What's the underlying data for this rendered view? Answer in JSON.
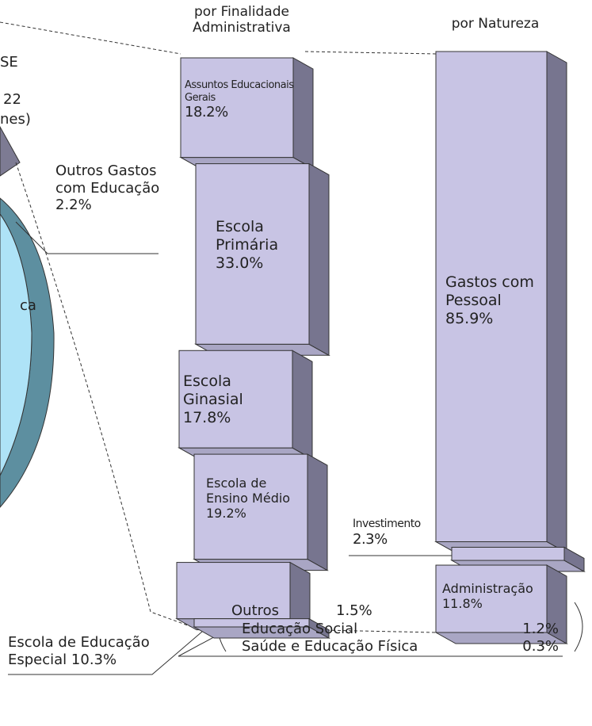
{
  "fragments": {
    "texts": [
      "SE",
      "22",
      "nes)",
      "ca"
    ],
    "pie_label": {
      "label": "Outros Gastos com Educação",
      "value": 2.2,
      "value_label": "2.2%"
    }
  },
  "chart_data": [
    {
      "type": "stacked_block",
      "title": "por Finalidade Administrativa",
      "color": "#c8c4e4",
      "categories": [
        "Assuntos Educacionais Gerais",
        "Escola Primária",
        "Escola Ginasial",
        "Escola de Ensino Médio",
        "Escola de Educação Especial",
        "Outros"
      ],
      "values": [
        18.2,
        33.0,
        17.8,
        19.2,
        10.3,
        1.5
      ],
      "value_labels": [
        "18.2%",
        "33.0%",
        "17.8%",
        "19.2%",
        "10.3%",
        "1.5%"
      ],
      "sub_items": [
        {
          "name": "Educação Social",
          "value": 1.2,
          "value_label": "1.2%"
        },
        {
          "name": "Saúde e Educação Física",
          "value": 0.3,
          "value_label": "0.3%"
        }
      ]
    },
    {
      "type": "stacked_block",
      "title": "por Natureza",
      "color": "#c8c4e4",
      "categories": [
        "Gastos com Pessoal",
        "Investimento",
        "Administração"
      ],
      "values": [
        85.9,
        2.3,
        11.8
      ],
      "value_labels": [
        "85.9%",
        "2.3%",
        "11.8%"
      ]
    }
  ]
}
